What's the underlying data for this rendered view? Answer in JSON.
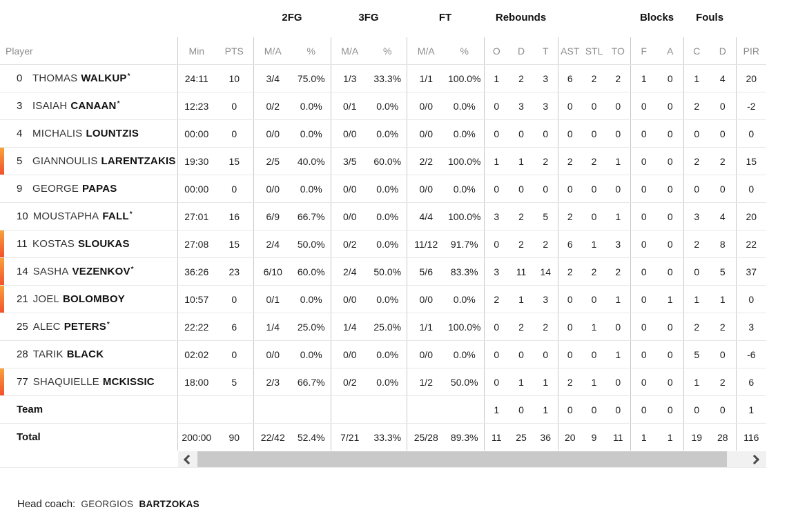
{
  "colors": {
    "accent_bar_top": "#f8a13b",
    "accent_bar_bottom": "#f3512c",
    "scroll_thumb": "#c9c9c9",
    "scroll_track": "#f1f1f1"
  },
  "table": {
    "group_headers": [
      {
        "label": "2FG"
      },
      {
        "label": "3FG"
      },
      {
        "label": "FT"
      },
      {
        "label": "Rebounds"
      },
      {
        "label": "Blocks"
      },
      {
        "label": "Fouls"
      }
    ],
    "columns": [
      "Player",
      "Min",
      "PTS",
      "M/A",
      "%",
      "M/A",
      "%",
      "M/A",
      "%",
      "O",
      "D",
      "T",
      "AST",
      "STL",
      "TO",
      "F",
      "A",
      "C",
      "D",
      "PIR"
    ],
    "players": [
      {
        "number": "0",
        "first": "THOMAS",
        "last": "WALKUP",
        "starter": true,
        "on_court": false,
        "stats": [
          "24:11",
          "10",
          "3/4",
          "75.0%",
          "1/3",
          "33.3%",
          "1/1",
          "100.0%",
          "1",
          "2",
          "3",
          "6",
          "2",
          "2",
          "1",
          "0",
          "1",
          "4",
          "20"
        ]
      },
      {
        "number": "3",
        "first": "ISAIAH",
        "last": "CANAAN",
        "starter": true,
        "on_court": false,
        "stats": [
          "12:23",
          "0",
          "0/2",
          "0.0%",
          "0/1",
          "0.0%",
          "0/0",
          "0.0%",
          "0",
          "3",
          "3",
          "0",
          "0",
          "0",
          "0",
          "0",
          "2",
          "0",
          "-2"
        ]
      },
      {
        "number": "4",
        "first": "MICHALIS",
        "last": "LOUNTZIS",
        "starter": false,
        "on_court": false,
        "stats": [
          "00:00",
          "0",
          "0/0",
          "0.0%",
          "0/0",
          "0.0%",
          "0/0",
          "0.0%",
          "0",
          "0",
          "0",
          "0",
          "0",
          "0",
          "0",
          "0",
          "0",
          "0",
          "0"
        ]
      },
      {
        "number": "5",
        "first": "GIANNOULIS",
        "last": "LARENTZAKIS",
        "starter": false,
        "on_court": true,
        "stats": [
          "19:30",
          "15",
          "2/5",
          "40.0%",
          "3/5",
          "60.0%",
          "2/2",
          "100.0%",
          "1",
          "1",
          "2",
          "2",
          "2",
          "1",
          "0",
          "0",
          "2",
          "2",
          "15"
        ]
      },
      {
        "number": "9",
        "first": "GEORGE",
        "last": "PAPAS",
        "starter": false,
        "on_court": false,
        "stats": [
          "00:00",
          "0",
          "0/0",
          "0.0%",
          "0/0",
          "0.0%",
          "0/0",
          "0.0%",
          "0",
          "0",
          "0",
          "0",
          "0",
          "0",
          "0",
          "0",
          "0",
          "0",
          "0"
        ]
      },
      {
        "number": "10",
        "first": "MOUSTAPHA",
        "last": "FALL",
        "starter": true,
        "on_court": false,
        "stats": [
          "27:01",
          "16",
          "6/9",
          "66.7%",
          "0/0",
          "0.0%",
          "4/4",
          "100.0%",
          "3",
          "2",
          "5",
          "2",
          "0",
          "1",
          "0",
          "0",
          "3",
          "4",
          "20"
        ]
      },
      {
        "number": "11",
        "first": "KOSTAS",
        "last": "SLOUKAS",
        "starter": false,
        "on_court": true,
        "stats": [
          "27:08",
          "15",
          "2/4",
          "50.0%",
          "0/2",
          "0.0%",
          "11/12",
          "91.7%",
          "0",
          "2",
          "2",
          "6",
          "1",
          "3",
          "0",
          "0",
          "2",
          "8",
          "22"
        ]
      },
      {
        "number": "14",
        "first": "SASHA",
        "last": "VEZENKOV",
        "starter": true,
        "on_court": true,
        "stats": [
          "36:26",
          "23",
          "6/10",
          "60.0%",
          "2/4",
          "50.0%",
          "5/6",
          "83.3%",
          "3",
          "11",
          "14",
          "2",
          "2",
          "2",
          "0",
          "0",
          "0",
          "5",
          "37"
        ]
      },
      {
        "number": "21",
        "first": "JOEL",
        "last": "BOLOMBOY",
        "starter": false,
        "on_court": true,
        "stats": [
          "10:57",
          "0",
          "0/1",
          "0.0%",
          "0/0",
          "0.0%",
          "0/0",
          "0.0%",
          "2",
          "1",
          "3",
          "0",
          "0",
          "1",
          "0",
          "1",
          "1",
          "1",
          "0"
        ]
      },
      {
        "number": "25",
        "first": "ALEC",
        "last": "PETERS",
        "starter": true,
        "on_court": false,
        "stats": [
          "22:22",
          "6",
          "1/4",
          "25.0%",
          "1/4",
          "25.0%",
          "1/1",
          "100.0%",
          "0",
          "2",
          "2",
          "0",
          "1",
          "0",
          "0",
          "0",
          "2",
          "2",
          "3"
        ]
      },
      {
        "number": "28",
        "first": "TARIK",
        "last": "BLACK",
        "starter": false,
        "on_court": false,
        "stats": [
          "02:02",
          "0",
          "0/0",
          "0.0%",
          "0/0",
          "0.0%",
          "0/0",
          "0.0%",
          "0",
          "0",
          "0",
          "0",
          "0",
          "1",
          "0",
          "0",
          "5",
          "0",
          "-6"
        ]
      },
      {
        "number": "77",
        "first": "SHAQUIELLE",
        "last": "MCKISSIC",
        "starter": false,
        "on_court": true,
        "stats": [
          "18:00",
          "5",
          "2/3",
          "66.7%",
          "0/2",
          "0.0%",
          "1/2",
          "50.0%",
          "0",
          "1",
          "1",
          "2",
          "1",
          "0",
          "0",
          "0",
          "1",
          "2",
          "6"
        ]
      }
    ],
    "team_row": {
      "label": "Team",
      "stats": [
        "",
        "",
        "",
        "",
        "",
        "",
        "",
        "",
        "1",
        "0",
        "1",
        "0",
        "0",
        "0",
        "0",
        "0",
        "0",
        "0",
        "1"
      ]
    },
    "total_row": {
      "label": "Total",
      "stats": [
        "200:00",
        "90",
        "22/42",
        "52.4%",
        "7/21",
        "33.3%",
        "25/28",
        "89.3%",
        "11",
        "25",
        "36",
        "20",
        "9",
        "11",
        "1",
        "1",
        "19",
        "28",
        "116"
      ]
    }
  },
  "footer": {
    "head_coach_label": "Head coach:",
    "coach_first": "GEORGIOS",
    "coach_last": "BARTZOKAS"
  }
}
